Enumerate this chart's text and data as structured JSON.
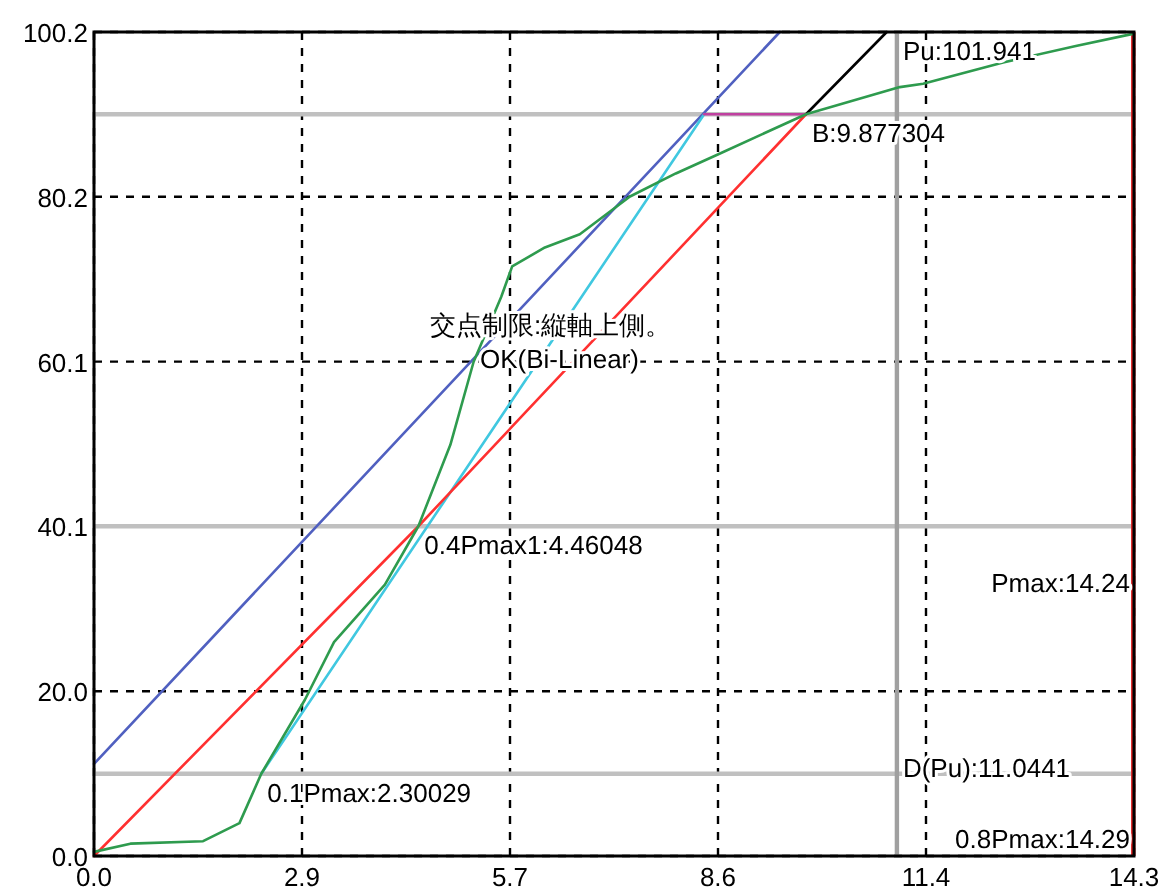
{
  "chart_data": {
    "type": "line",
    "xlim": [
      0,
      14.3
    ],
    "ylim": [
      0,
      100.2
    ],
    "xticks": [
      {
        "value": 0,
        "label": "0.0"
      },
      {
        "value": 2.86,
        "label": "2.9"
      },
      {
        "value": 5.72,
        "label": "5.7"
      },
      {
        "value": 8.58,
        "label": "8.6"
      },
      {
        "value": 11.44,
        "label": "11.4"
      },
      {
        "value": 14.3,
        "label": "14.3"
      }
    ],
    "yticks": [
      {
        "value": 0,
        "label": "0.0"
      },
      {
        "value": 20.04,
        "label": "20.0"
      },
      {
        "value": 40.08,
        "label": "40.1"
      },
      {
        "value": 60.12,
        "label": "60.1"
      },
      {
        "value": 80.16,
        "label": "80.2"
      },
      {
        "value": 100.2,
        "label": "100.2"
      }
    ],
    "grid": true,
    "line_style": "solid",
    "ref_lines": [
      {
        "axis": "y",
        "value": 10.0,
        "color": "#c0c0c0"
      },
      {
        "axis": "y",
        "value": 40.1,
        "color": "#c0c0c0"
      },
      {
        "axis": "y",
        "value": 90.2,
        "color": "#c0c0c0"
      },
      {
        "axis": "x",
        "value": 11.04,
        "color": "#a0a0a0"
      },
      {
        "axis": "x",
        "value": 14.29,
        "color": "#e02020"
      }
    ],
    "series": [
      {
        "color": "#5060c0",
        "x": [
          0,
          9.43
        ],
        "values": [
          11.2,
          100.2
        ]
      },
      {
        "color": "#40c8e0",
        "x": [
          2.3,
          8.39
        ],
        "values": [
          10.0,
          90.2
        ]
      },
      {
        "color": "#c040a0",
        "x": [
          8.39,
          9.79
        ],
        "values": [
          90.2,
          90.2
        ]
      },
      {
        "color": "#000000",
        "x": [
          9.79,
          10.9
        ],
        "values": [
          90.2,
          100.2
        ]
      },
      {
        "color": "#ff3030",
        "x": [
          0,
          4.46,
          9.79
        ],
        "values": [
          0,
          40.1,
          90.2
        ]
      },
      {
        "color": "#2e9b4e",
        "x": [
          0,
          0.5,
          1.5,
          2.0,
          2.3,
          2.9,
          3.3,
          4.0,
          4.46,
          4.9,
          5.22,
          5.6,
          5.75,
          6.2,
          6.68,
          7.37,
          8.0,
          8.6,
          9.79,
          11.08,
          11.4,
          12.5,
          13.5,
          14.3
        ],
        "values": [
          0.5,
          1.5,
          1.8,
          4,
          10,
          19,
          26,
          33,
          40.1,
          50,
          60.1,
          68,
          71.7,
          74,
          75.6,
          80.2,
          83,
          85.4,
          90.2,
          93.5,
          93.9,
          96.5,
          98.5,
          100
        ]
      }
    ],
    "annotations": [
      "交点制限:縦軸上側。",
      "OK(Bi-Linear)",
      {
        "text": "0.1Pmax:2.30029",
        "x": 2.3,
        "y": 10.0
      },
      {
        "text": "0.4Pmax1:4.46048",
        "x": 4.46,
        "y": 40.1
      },
      {
        "text": "B:9.877304",
        "x": 9.79,
        "y": 90.2
      },
      {
        "text": "Pu:101.941",
        "x": 11.04,
        "y": 100.2
      },
      "Pmax:14.24",
      {
        "text": "D(Pu):11.0441",
        "x": 11.04,
        "y": 13.0
      },
      "0.8Pmax:14.29"
    ]
  }
}
